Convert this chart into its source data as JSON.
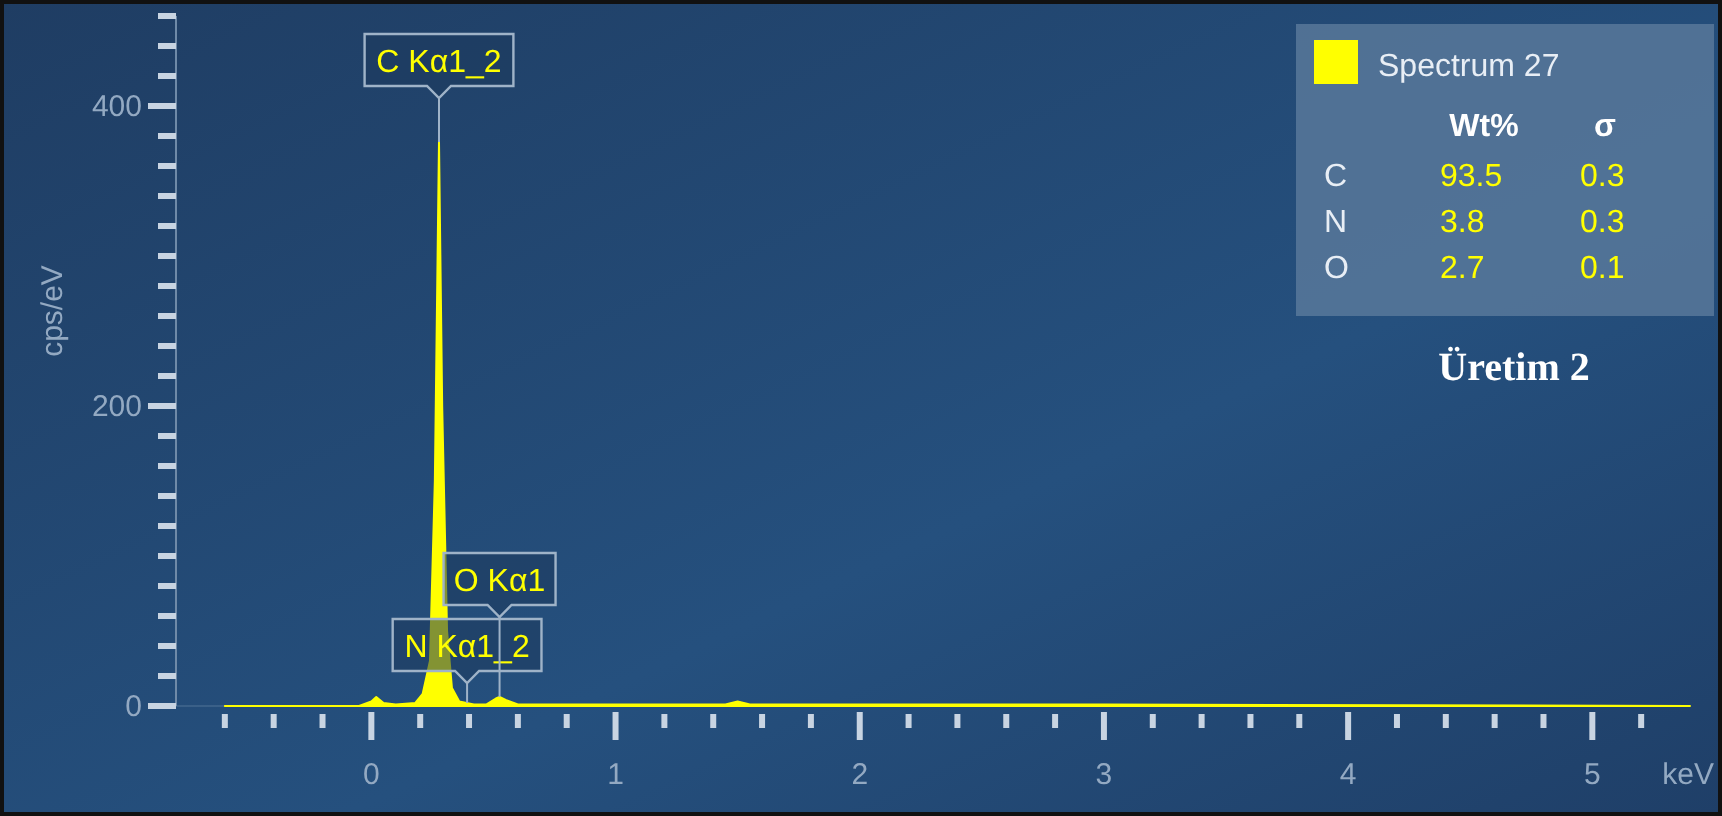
{
  "chart_data": [
    {
      "type": "area",
      "xlabel": "keV",
      "ylabel": "cps/eV",
      "xlim": [
        -0.8,
        5.4
      ],
      "ylim": [
        0,
        460
      ],
      "xticks": [
        {
          "value": -0.6,
          "label": null
        },
        {
          "value": -0.4,
          "label": null
        },
        {
          "value": -0.2,
          "label": null
        },
        0,
        {
          "value": 0.2,
          "label": null
        },
        {
          "value": 0.4,
          "label": null
        },
        {
          "value": 0.6,
          "label": null
        },
        {
          "value": 0.8,
          "label": null
        },
        1,
        {
          "value": 1.2,
          "label": null
        },
        {
          "value": 1.4,
          "label": null
        },
        {
          "value": 1.6,
          "label": null
        },
        {
          "value": 1.8,
          "label": null
        },
        2,
        {
          "value": 2.2,
          "label": null
        },
        {
          "value": 2.4,
          "label": null
        },
        {
          "value": 2.6,
          "label": null
        },
        {
          "value": 2.8,
          "label": null
        },
        3,
        {
          "value": 3.2,
          "label": null
        },
        {
          "value": 3.4,
          "label": null
        },
        {
          "value": 3.6,
          "label": null
        },
        {
          "value": 3.8,
          "label": null
        },
        4,
        {
          "value": 4.2,
          "label": null
        },
        {
          "value": 4.4,
          "label": null
        },
        {
          "value": 4.6,
          "label": null
        },
        {
          "value": 4.8,
          "label": null
        },
        5,
        {
          "value": 5.2,
          "label": null
        }
      ],
      "yticks": [
        0,
        {
          "value": 20,
          "label": null
        },
        {
          "value": 40,
          "label": null
        },
        {
          "value": 60,
          "label": null
        },
        {
          "value": 80,
          "label": null
        },
        {
          "value": 100,
          "label": null
        },
        {
          "value": 120,
          "label": null
        },
        {
          "value": 140,
          "label": null
        },
        {
          "value": 160,
          "label": null
        },
        {
          "value": 180,
          "label": null
        },
        200,
        {
          "value": 220,
          "label": null
        },
        {
          "value": 240,
          "label": null
        },
        {
          "value": 260,
          "label": null
        },
        {
          "value": 280,
          "label": null
        },
        {
          "value": 300,
          "label": null
        },
        {
          "value": 320,
          "label": null
        },
        {
          "value": 340,
          "label": null
        },
        {
          "value": 360,
          "label": null
        },
        {
          "value": 380,
          "label": null
        },
        400,
        {
          "value": 420,
          "label": null
        },
        {
          "value": 440,
          "label": null
        },
        {
          "value": 460,
          "label": null
        }
      ],
      "series": [
        {
          "name": "Spectrum 27",
          "color": "#ffff00",
          "x": [
            -0.6,
            -0.05,
            0.0,
            0.02,
            0.05,
            0.1,
            0.18,
            0.21,
            0.24,
            0.26,
            0.277,
            0.29,
            0.31,
            0.33,
            0.36,
            0.39,
            0.42,
            0.47,
            0.51,
            0.525,
            0.55,
            0.6,
            0.8,
            1.45,
            1.5,
            1.55,
            2.2,
            3,
            5.4
          ],
          "values": [
            0,
            0,
            3,
            6,
            2,
            1,
            2,
            8,
            30,
            150,
            376,
            200,
            50,
            12,
            3,
            2,
            1,
            1,
            5,
            6,
            4,
            1,
            1,
            1,
            3,
            1,
            1,
            1,
            0
          ]
        }
      ],
      "legend": "top right",
      "grid": false,
      "annotations": [
        {
          "text": "C Kα1_2",
          "x": 0.277,
          "y": 376
        },
        {
          "text": "N Kα1_2",
          "x": 0.392,
          "y": 2
        },
        {
          "text": "O Kα1",
          "x": 0.525,
          "y": 6
        },
        "Üretim 2"
      ]
    },
    {
      "type": "other",
      "categories": [
        "C",
        "N",
        "O"
      ],
      "data_labels": true,
      "series": [
        {
          "name": "Wt%",
          "values": [
            93.5,
            3.8,
            2.7
          ]
        },
        {
          "name": "σ",
          "values": [
            0.3,
            0.3,
            0.1
          ]
        }
      ]
    }
  ]
}
